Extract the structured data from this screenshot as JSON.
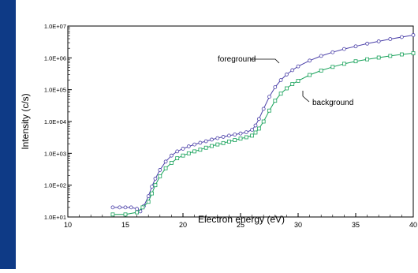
{
  "colors": {
    "sidebar": "#0e3a86",
    "foreground": "#4a3fa8",
    "background": "#1aa35c",
    "axis": "#000000"
  },
  "chart_data": {
    "type": "scatter",
    "title": "",
    "xlabel": "Electron energy (eV)",
    "ylabel": "Intensity (c/s)",
    "xlim": [
      10,
      40
    ],
    "ylim_log10": [
      1,
      7
    ],
    "y_scale": "log",
    "grid": false,
    "x_ticks": [
      10,
      15,
      20,
      25,
      30,
      35,
      40
    ],
    "x_tick_labels": [
      "10",
      "15",
      "20",
      "25",
      "30",
      "35",
      "40"
    ],
    "y_ticks": [
      10,
      100,
      1000,
      10000,
      100000,
      1000000,
      10000000
    ],
    "y_tick_labels": [
      "1.0E+01",
      "1.0E+02",
      "1.0E+03",
      "1.0E+04",
      "1.0E+05",
      "1.0E+06",
      "1.0E+07"
    ],
    "series": [
      {
        "name": "foreground",
        "color": "#4a3fa8",
        "marker": "circle",
        "points": [
          [
            13.9,
            20
          ],
          [
            14.5,
            20
          ],
          [
            15.0,
            20
          ],
          [
            15.5,
            20
          ],
          [
            16.0,
            18
          ],
          [
            16.3,
            15
          ],
          [
            16.6,
            22
          ],
          [
            17.0,
            45
          ],
          [
            17.3,
            90
          ],
          [
            17.6,
            160
          ],
          [
            18.0,
            300
          ],
          [
            18.5,
            550
          ],
          [
            19.0,
            850
          ],
          [
            19.5,
            1150
          ],
          [
            20.0,
            1400
          ],
          [
            20.5,
            1650
          ],
          [
            21.0,
            1900
          ],
          [
            21.5,
            2150
          ],
          [
            22.0,
            2400
          ],
          [
            22.5,
            2700
          ],
          [
            23.0,
            3000
          ],
          [
            23.5,
            3300
          ],
          [
            24.0,
            3600
          ],
          [
            24.5,
            3900
          ],
          [
            25.0,
            4200
          ],
          [
            25.5,
            4600
          ],
          [
            26.0,
            5500
          ],
          [
            26.3,
            7500
          ],
          [
            26.6,
            12000
          ],
          [
            27.0,
            25000
          ],
          [
            27.5,
            60000
          ],
          [
            28.0,
            120000
          ],
          [
            28.5,
            200000
          ],
          [
            29.0,
            300000
          ],
          [
            29.5,
            410000
          ],
          [
            30.0,
            540000
          ],
          [
            31.0,
            820000
          ],
          [
            32.0,
            1150000
          ],
          [
            33.0,
            1500000
          ],
          [
            34.0,
            1900000
          ],
          [
            35.0,
            2300000
          ],
          [
            36.0,
            2800000
          ],
          [
            37.0,
            3300000
          ],
          [
            38.0,
            3900000
          ],
          [
            39.0,
            4500000
          ],
          [
            40.0,
            5200000
          ]
        ]
      },
      {
        "name": "background",
        "color": "#1aa35c",
        "marker": "square",
        "points": [
          [
            13.9,
            12
          ],
          [
            15.0,
            12
          ],
          [
            16.0,
            14
          ],
          [
            16.5,
            20
          ],
          [
            17.0,
            30
          ],
          [
            17.3,
            55
          ],
          [
            17.6,
            100
          ],
          [
            18.0,
            190
          ],
          [
            18.5,
            340
          ],
          [
            19.0,
            500
          ],
          [
            19.5,
            700
          ],
          [
            20.0,
            850
          ],
          [
            20.5,
            1000
          ],
          [
            21.0,
            1150
          ],
          [
            21.5,
            1300
          ],
          [
            22.0,
            1500
          ],
          [
            22.5,
            1700
          ],
          [
            23.0,
            1900
          ],
          [
            23.5,
            2100
          ],
          [
            24.0,
            2350
          ],
          [
            24.5,
            2600
          ],
          [
            25.0,
            2900
          ],
          [
            25.5,
            3200
          ],
          [
            26.0,
            3600
          ],
          [
            26.3,
            4500
          ],
          [
            26.6,
            6000
          ],
          [
            27.0,
            10000
          ],
          [
            27.5,
            22000
          ],
          [
            28.0,
            45000
          ],
          [
            28.5,
            75000
          ],
          [
            29.0,
            110000
          ],
          [
            29.5,
            150000
          ],
          [
            30.0,
            190000
          ],
          [
            31.0,
            290000
          ],
          [
            32.0,
            400000
          ],
          [
            33.0,
            520000
          ],
          [
            34.0,
            650000
          ],
          [
            35.0,
            780000
          ],
          [
            36.0,
            900000
          ],
          [
            37.0,
            1020000
          ],
          [
            38.0,
            1150000
          ],
          [
            39.0,
            1280000
          ],
          [
            40.0,
            1400000
          ]
        ]
      }
    ],
    "annotations": [
      {
        "text": "foreground",
        "series": "foreground"
      },
      {
        "text": "background",
        "series": "background"
      }
    ]
  }
}
